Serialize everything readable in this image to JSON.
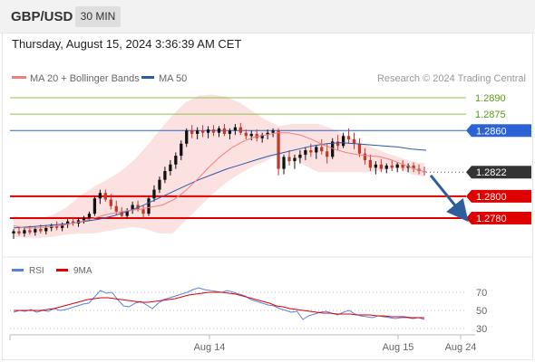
{
  "header": {
    "symbol": "GBP/USD",
    "timeframe": "30 MIN",
    "datetime": "Thursday, August 15, 2024 3:36:39 AM CET"
  },
  "colors": {
    "bull_candle": "#111111",
    "bear_candle": "#c0392b",
    "ma20": "#f08080",
    "ma50": "#2b5aa6",
    "bollinger_fill": "#fbdcdc",
    "support": "#e00000",
    "resistance": "#8bc34a",
    "pivot": "#2b63d6",
    "last_price": "#333333",
    "arrow": "#2e5e9e",
    "rsi": "#5b7fe0",
    "rsi_ma": "#e00000"
  },
  "legend": {
    "ma20_label": "MA 20 + Bollinger Bands",
    "ma50_label": "MA 50",
    "copyright": "Research © 2024 Trading Central"
  },
  "chart_data": [
    {
      "type": "candlestick",
      "title": "GBP/USD 30 MIN",
      "ylim": [
        1.2755,
        1.2905
      ],
      "x_tick_labels": [
        "Aug 14",
        "Aug 15",
        "Aug 24"
      ],
      "levels": [
        {
          "value": 1.289,
          "label": "1.2890",
          "kind": "resistance"
        },
        {
          "value": 1.2875,
          "label": "1.2875",
          "kind": "resistance"
        },
        {
          "value": 1.286,
          "label": "1.2860",
          "kind": "pivot"
        },
        {
          "value": 1.2822,
          "label": "1.2822",
          "kind": "last"
        },
        {
          "value": 1.28,
          "label": "1.2800",
          "kind": "support"
        },
        {
          "value": 1.278,
          "label": "1.2780",
          "kind": "support"
        }
      ],
      "forecast_arrow": {
        "from": 1.2819,
        "to": 1.2781
      },
      "candles": [
        [
          1.2766,
          1.277,
          1.2761,
          1.2768
        ],
        [
          1.2768,
          1.2772,
          1.2764,
          1.2766
        ],
        [
          1.2766,
          1.2771,
          1.2763,
          1.2769
        ],
        [
          1.2769,
          1.2773,
          1.2765,
          1.2767
        ],
        [
          1.2767,
          1.2772,
          1.2764,
          1.277
        ],
        [
          1.277,
          1.2774,
          1.2766,
          1.2768
        ],
        [
          1.2768,
          1.2773,
          1.2765,
          1.2771
        ],
        [
          1.2771,
          1.2775,
          1.2768,
          1.2773
        ],
        [
          1.2773,
          1.2777,
          1.2769,
          1.2771
        ],
        [
          1.2771,
          1.2776,
          1.2768,
          1.2774
        ],
        [
          1.2774,
          1.2779,
          1.2771,
          1.2777
        ],
        [
          1.2777,
          1.2781,
          1.2773,
          1.2775
        ],
        [
          1.2775,
          1.278,
          1.2772,
          1.2778
        ],
        [
          1.2778,
          1.2782,
          1.2775,
          1.278
        ],
        [
          1.278,
          1.2786,
          1.2778,
          1.2784
        ],
        [
          1.2784,
          1.28,
          1.2782,
          1.2798
        ],
        [
          1.2798,
          1.2806,
          1.2793,
          1.2803
        ],
        [
          1.2803,
          1.2806,
          1.2795,
          1.2797
        ],
        [
          1.2797,
          1.2802,
          1.2788,
          1.2791
        ],
        [
          1.2791,
          1.2796,
          1.2783,
          1.2786
        ],
        [
          1.2786,
          1.279,
          1.2779,
          1.2782
        ],
        [
          1.2782,
          1.2789,
          1.278,
          1.2787
        ],
        [
          1.2787,
          1.2795,
          1.2784,
          1.2792
        ],
        [
          1.2792,
          1.2796,
          1.2786,
          1.2788
        ],
        [
          1.2788,
          1.2792,
          1.278,
          1.2784
        ],
        [
          1.2784,
          1.28,
          1.2782,
          1.2798
        ],
        [
          1.2798,
          1.281,
          1.2795,
          1.2806
        ],
        [
          1.2806,
          1.2818,
          1.2803,
          1.2815
        ],
        [
          1.2815,
          1.2827,
          1.2812,
          1.2823
        ],
        [
          1.2823,
          1.2833,
          1.2819,
          1.2829
        ],
        [
          1.2829,
          1.284,
          1.2825,
          1.2837
        ],
        [
          1.2837,
          1.2851,
          1.2833,
          1.2848
        ],
        [
          1.2848,
          1.2862,
          1.2845,
          1.286
        ],
        [
          1.286,
          1.2865,
          1.2853,
          1.2857
        ],
        [
          1.2857,
          1.2863,
          1.2852,
          1.286
        ],
        [
          1.286,
          1.2865,
          1.2854,
          1.2858
        ],
        [
          1.2858,
          1.2864,
          1.2853,
          1.2861
        ],
        [
          1.2861,
          1.2865,
          1.2855,
          1.2858
        ],
        [
          1.2858,
          1.2864,
          1.2854,
          1.2862
        ],
        [
          1.2862,
          1.2866,
          1.2855,
          1.2857
        ],
        [
          1.2857,
          1.2862,
          1.2852,
          1.286
        ],
        [
          1.286,
          1.2866,
          1.2856,
          1.2863
        ],
        [
          1.2863,
          1.2867,
          1.2856,
          1.2858
        ],
        [
          1.2858,
          1.2861,
          1.2852,
          1.2855
        ],
        [
          1.2855,
          1.286,
          1.2851,
          1.2857
        ],
        [
          1.2857,
          1.2861,
          1.285,
          1.2853
        ],
        [
          1.2853,
          1.2858,
          1.2849,
          1.2856
        ],
        [
          1.2856,
          1.2861,
          1.2852,
          1.2858
        ],
        [
          1.2858,
          1.2862,
          1.2854,
          1.286
        ],
        [
          1.286,
          1.2862,
          1.2819,
          1.2825
        ],
        [
          1.2825,
          1.2838,
          1.282,
          1.2836
        ],
        [
          1.2836,
          1.2842,
          1.2828,
          1.2832
        ],
        [
          1.2832,
          1.2838,
          1.2825,
          1.2835
        ],
        [
          1.2835,
          1.2842,
          1.283,
          1.2838
        ],
        [
          1.2838,
          1.2845,
          1.2833,
          1.2842
        ],
        [
          1.2842,
          1.2848,
          1.2836,
          1.284
        ],
        [
          1.284,
          1.2847,
          1.2834,
          1.2845
        ],
        [
          1.2845,
          1.2852,
          1.2838,
          1.2841
        ],
        [
          1.2841,
          1.2848,
          1.283,
          1.2836
        ],
        [
          1.2836,
          1.2853,
          1.2834,
          1.285
        ],
        [
          1.285,
          1.2856,
          1.2842,
          1.2846
        ],
        [
          1.2846,
          1.2858,
          1.2844,
          1.2855
        ],
        [
          1.2855,
          1.2862,
          1.2848,
          1.2852
        ],
        [
          1.2852,
          1.2858,
          1.2843,
          1.2848
        ],
        [
          1.2848,
          1.2853,
          1.2836,
          1.2839
        ],
        [
          1.2839,
          1.2844,
          1.2829,
          1.2833
        ],
        [
          1.2833,
          1.2838,
          1.2823,
          1.2826
        ],
        [
          1.2826,
          1.2832,
          1.282,
          1.2829
        ],
        [
          1.2829,
          1.2834,
          1.2822,
          1.2825
        ],
        [
          1.2825,
          1.283,
          1.2821,
          1.2828
        ],
        [
          1.2828,
          1.2833,
          1.2823,
          1.2826
        ],
        [
          1.2826,
          1.2831,
          1.2822,
          1.2829
        ],
        [
          1.2829,
          1.2833,
          1.2823,
          1.2826
        ],
        [
          1.2826,
          1.283,
          1.2822,
          1.2828
        ],
        [
          1.2828,
          1.2831,
          1.2822,
          1.2825
        ],
        [
          1.2825,
          1.2829,
          1.282,
          1.2823
        ],
        [
          1.2823,
          1.2827,
          1.2819,
          1.2822
        ]
      ],
      "ma20": [
        1.2773,
        1.2771,
        1.2771,
        1.2772,
        1.2773,
        1.2775,
        1.2777,
        1.278,
        1.2783,
        1.2785,
        1.2787,
        1.2788,
        1.279,
        1.2792,
        1.2797,
        1.2805,
        1.2815,
        1.2826,
        1.2836,
        1.2844,
        1.285,
        1.2854,
        1.2856,
        1.2858,
        1.2858,
        1.2856,
        1.2852,
        1.2847,
        1.2843,
        1.284,
        1.2838,
        1.2837,
        1.2836,
        1.2833,
        1.2829,
        1.2825,
        1.2822
      ],
      "ma50": [
        1.2771,
        1.2772,
        1.2773,
        1.2774,
        1.2775,
        1.2777,
        1.2779,
        1.2782,
        1.2786,
        1.2791,
        1.2797,
        1.2803,
        1.2809,
        1.2815,
        1.282,
        1.2825,
        1.2829,
        1.2833,
        1.2837,
        1.284,
        1.2843,
        1.2846,
        1.2848,
        1.2849,
        1.2848,
        1.2847,
        1.2846,
        1.2845,
        1.2843,
        1.2842
      ],
      "bollinger_upper": [
        1.2782,
        1.278,
        1.278,
        1.2783,
        1.279,
        1.28,
        1.2808,
        1.2815,
        1.2822,
        1.2832,
        1.2845,
        1.286,
        1.2874,
        1.2886,
        1.2892,
        1.2893,
        1.2891,
        1.2886,
        1.2878,
        1.287,
        1.2864,
        1.2866,
        1.2866,
        1.2866,
        1.2862,
        1.2856,
        1.285,
        1.2845,
        1.284,
        1.2836,
        1.2832,
        1.283
      ],
      "bollinger_lower": [
        1.2763,
        1.2762,
        1.2762,
        1.2763,
        1.2765,
        1.2766,
        1.2766,
        1.2768,
        1.277,
        1.2772,
        1.277,
        1.2766,
        1.2766,
        1.2778,
        1.279,
        1.2802,
        1.2812,
        1.282,
        1.2827,
        1.2832,
        1.2838,
        1.2836,
        1.2828,
        1.2822,
        1.2822,
        1.2822,
        1.2822,
        1.2822,
        1.2824,
        1.2826,
        1.282,
        1.2818
      ]
    },
    {
      "type": "line",
      "title": "RSI",
      "series": [
        {
          "name": "RSI"
        },
        {
          "name": "9MA"
        }
      ],
      "ylim": [
        25,
        80
      ],
      "y_ticks": [
        70,
        50,
        30
      ],
      "rsi": [
        48,
        50,
        49,
        51,
        48,
        50,
        49,
        52,
        50,
        51,
        53,
        55,
        57,
        58,
        65,
        72,
        69,
        70,
        62,
        55,
        54,
        58,
        60,
        56,
        52,
        58,
        62,
        64,
        66,
        68,
        70,
        73,
        75,
        73,
        72,
        71,
        70,
        72,
        70,
        68,
        66,
        62,
        60,
        58,
        56,
        55,
        52,
        50,
        48,
        49,
        40,
        44,
        46,
        48,
        49,
        47,
        45,
        48,
        50,
        46,
        44,
        43,
        42,
        44,
        43,
        42,
        41,
        42,
        42,
        41,
        42,
        40
      ],
      "rsi_ma": [
        50,
        50,
        50,
        50,
        50,
        51,
        52,
        54,
        56,
        58,
        60,
        62,
        63,
        64,
        64,
        63,
        62,
        61,
        60,
        59,
        59,
        60,
        61,
        62,
        63,
        65,
        67,
        68,
        69,
        70,
        70,
        70,
        69,
        68,
        66,
        64,
        62,
        60,
        58,
        55,
        54,
        52,
        51,
        50,
        49,
        48,
        47,
        47,
        46,
        46,
        46,
        45,
        45,
        45,
        44,
        44,
        43,
        43,
        43,
        42,
        42,
        42
      ]
    }
  ]
}
